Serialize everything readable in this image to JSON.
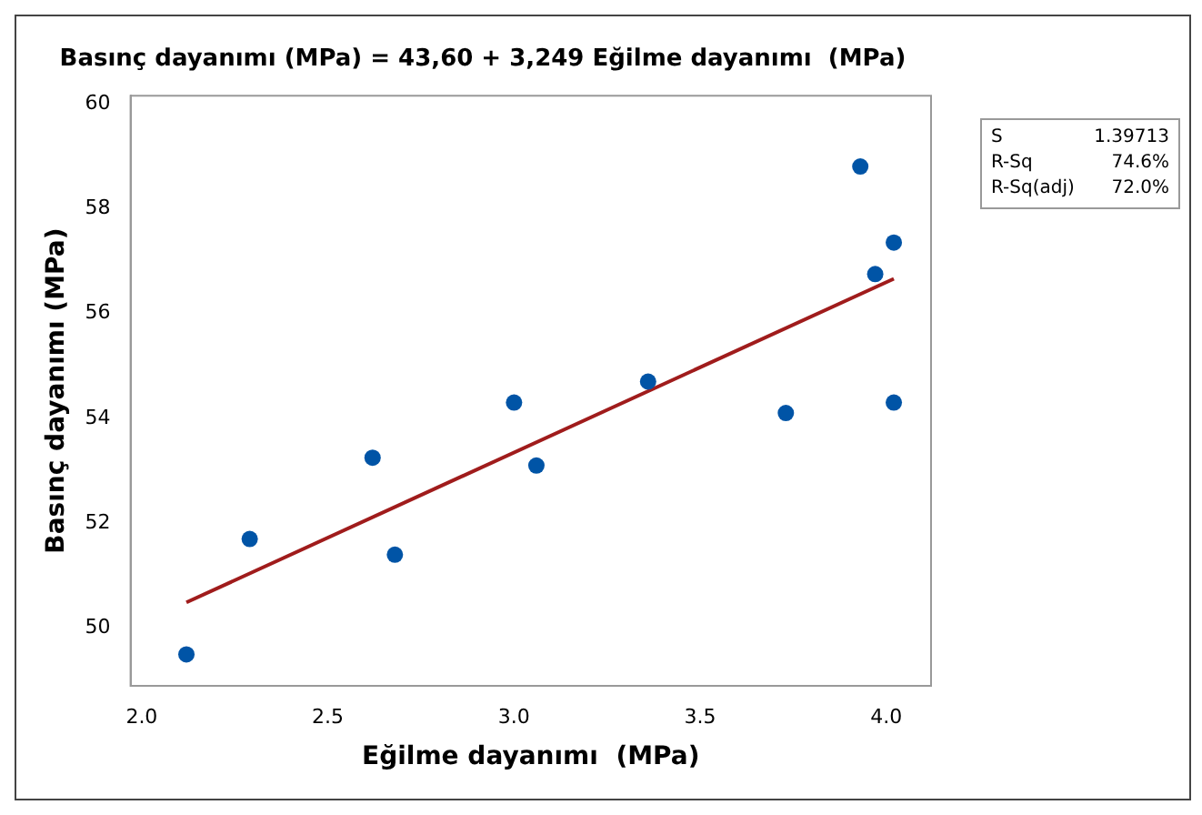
{
  "chart_data": {
    "type": "scatter",
    "title": "Basınç dayanımı (MPa) = 43,60 + 3,249 Eğilme dayanımı  (MPa)",
    "xlabel": "Eğilme dayanımı  (MPa)",
    "ylabel": "Basınç dayanımı (MPa)",
    "x": [
      2.12,
      2.29,
      2.62,
      2.68,
      3.0,
      3.06,
      3.36,
      3.73,
      3.93,
      3.97,
      4.02,
      4.02
    ],
    "series": [
      {
        "color": "#0054a6",
        "values": [
          49.5,
          51.7,
          53.25,
          51.4,
          54.3,
          53.1,
          54.7,
          54.1,
          58.8,
          56.75,
          57.35,
          54.3
        ]
      },
      {
        "type": "line",
        "color": "#a01c1c",
        "x": [
          2.12,
          4.02
        ],
        "values": [
          50.49,
          56.66
        ],
        "marker": "none"
      }
    ],
    "xlim": [
      1.97,
      4.12
    ],
    "ylim": [
      48.9,
      60.15
    ],
    "xticks": [
      {
        "value": 2,
        "label": "2.0"
      },
      2.5,
      {
        "value": 3,
        "label": "3.0"
      },
      3.5,
      {
        "value": 4,
        "label": "4.0"
      }
    ],
    "yticks": [
      50,
      52,
      54,
      56,
      58,
      60
    ],
    "grid": false,
    "legend": false,
    "marker": "circle",
    "annotations": [
      "S 1.39713",
      "R-Sq 74.6%",
      "R-Sq(adj) 72.0%"
    ]
  }
}
